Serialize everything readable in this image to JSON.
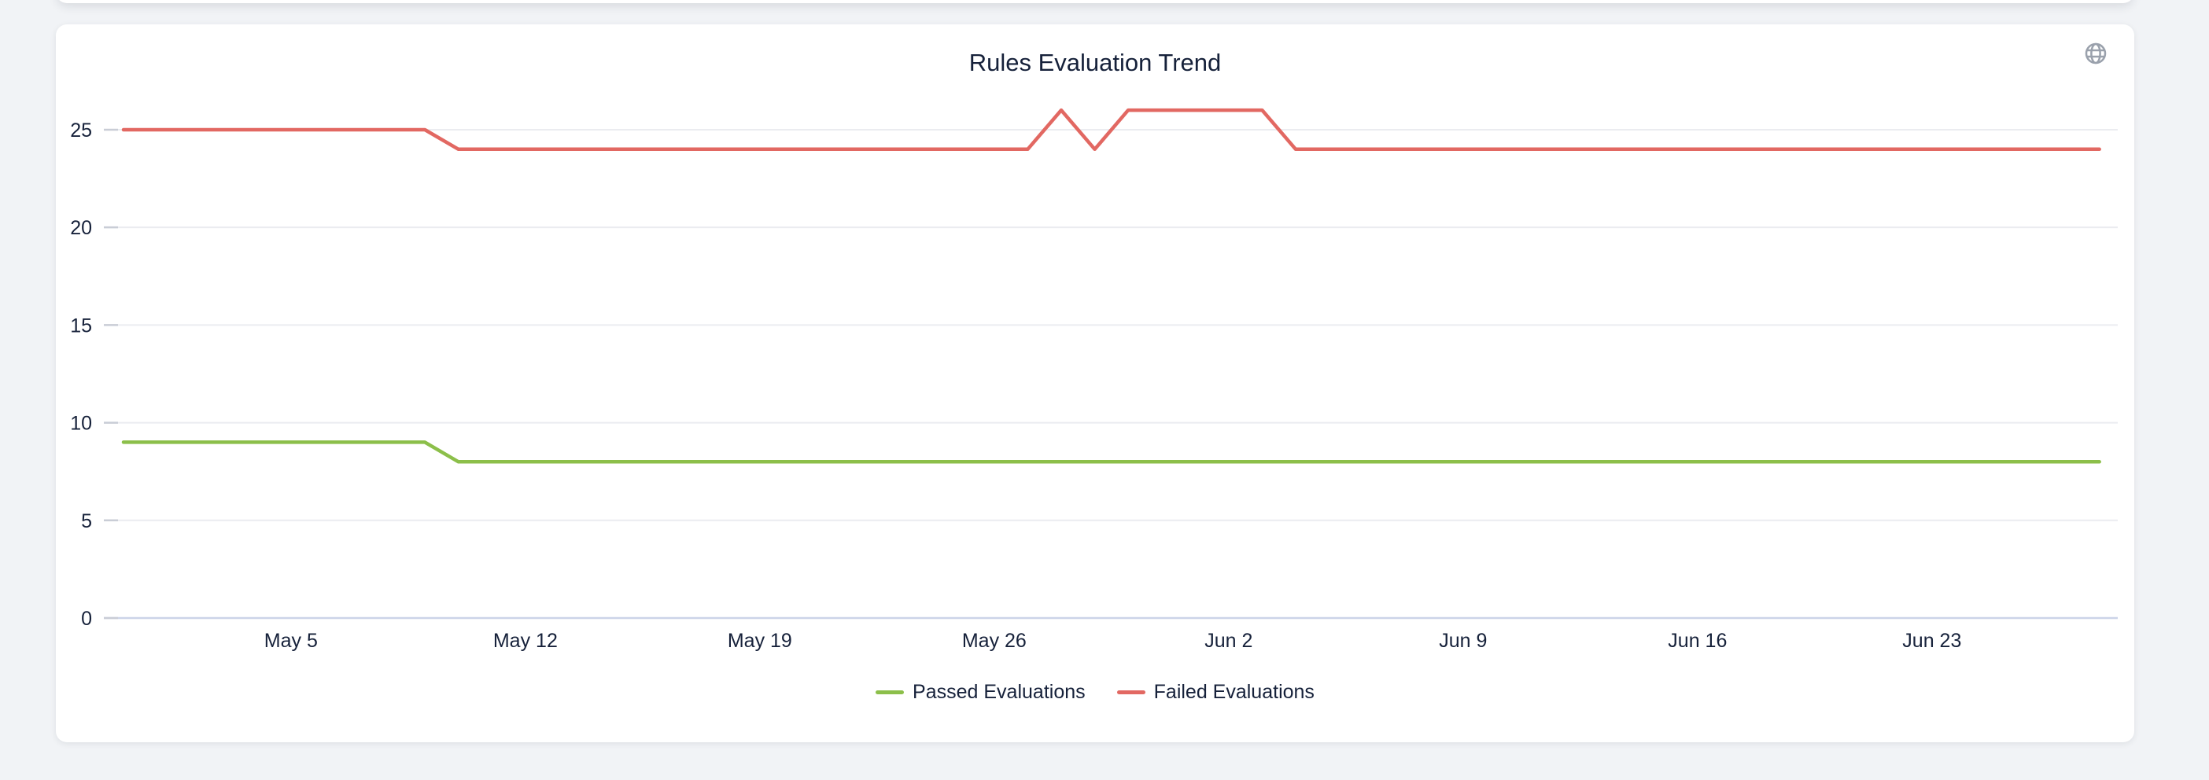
{
  "page": {
    "background": "#f1f3f6",
    "card_background": "#ffffff"
  },
  "header": {
    "title": "Rules Evaluation Trend",
    "icon": "globe"
  },
  "chart_data": {
    "type": "line",
    "title": "Rules Evaluation Trend",
    "xlabel": "",
    "ylabel": "",
    "ylim": [
      0,
      27
    ],
    "grid": true,
    "legend_position": "bottom",
    "y_ticks": [
      0,
      5,
      10,
      15,
      20,
      25
    ],
    "x_tick_labels": [
      "May 5",
      "May 12",
      "May 19",
      "May 26",
      "Jun 2",
      "Jun 9",
      "Jun 16",
      "Jun 23"
    ],
    "x_tick_indices": [
      5,
      12,
      19,
      26,
      33,
      40,
      47,
      54
    ],
    "x": [
      "Apr 30",
      "May 1",
      "May 2",
      "May 3",
      "May 4",
      "May 5",
      "May 6",
      "May 7",
      "May 8",
      "May 9",
      "May 10",
      "May 11",
      "May 12",
      "May 13",
      "May 14",
      "May 15",
      "May 16",
      "May 17",
      "May 18",
      "May 19",
      "May 20",
      "May 21",
      "May 22",
      "May 23",
      "May 24",
      "May 25",
      "May 26",
      "May 27",
      "May 28",
      "May 29",
      "May 30",
      "May 31",
      "Jun 1",
      "Jun 2",
      "Jun 3",
      "Jun 4",
      "Jun 5",
      "Jun 6",
      "Jun 7",
      "Jun 8",
      "Jun 9",
      "Jun 10",
      "Jun 11",
      "Jun 12",
      "Jun 13",
      "Jun 14",
      "Jun 15",
      "Jun 16",
      "Jun 17",
      "Jun 18",
      "Jun 19",
      "Jun 20",
      "Jun 21",
      "Jun 22",
      "Jun 23",
      "Jun 24",
      "Jun 25",
      "Jun 26",
      "Jun 27",
      "Jun 28"
    ],
    "series": [
      {
        "name": "Passed Evaluations",
        "color": "#8cbf4a",
        "values": [
          9,
          9,
          9,
          9,
          9,
          9,
          9,
          9,
          9,
          9,
          8,
          8,
          8,
          8,
          8,
          8,
          8,
          8,
          8,
          8,
          8,
          8,
          8,
          8,
          8,
          8,
          8,
          8,
          8,
          8,
          8,
          8,
          8,
          8,
          8,
          8,
          8,
          8,
          8,
          8,
          8,
          8,
          8,
          8,
          8,
          8,
          8,
          8,
          8,
          8,
          8,
          8,
          8,
          8,
          8,
          8,
          8,
          8,
          8,
          8
        ]
      },
      {
        "name": "Failed Evaluations",
        "color": "#e26862",
        "values": [
          25,
          25,
          25,
          25,
          25,
          25,
          25,
          25,
          25,
          25,
          24,
          24,
          24,
          24,
          24,
          24,
          24,
          24,
          24,
          24,
          24,
          24,
          24,
          24,
          24,
          24,
          24,
          24,
          26,
          24,
          26,
          26,
          26,
          26,
          26,
          24,
          24,
          24,
          24,
          24,
          24,
          24,
          24,
          24,
          24,
          24,
          24,
          24,
          24,
          24,
          24,
          24,
          24,
          24,
          24,
          24,
          24,
          24,
          24,
          24
        ]
      }
    ],
    "colors": {
      "grid": "#ebecf0",
      "axis_baseline": "#ccd4e8",
      "tick": "#c9cdd6",
      "label": "#16213a"
    }
  }
}
